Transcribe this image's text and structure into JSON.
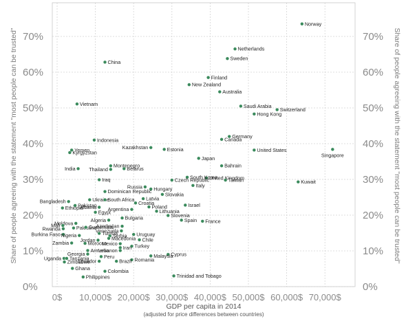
{
  "chart_data": {
    "type": "scatter",
    "title": "",
    "xlabel": "GDP per capita in 2014",
    "xlabel_sub": "(adjusted for price differences between countries)",
    "ylabel": "Share of people agreeing with the statement \"most people can be trusted\"",
    "xlim": [
      0,
      75000
    ],
    "ylim": [
      0,
      75
    ],
    "x_ticks": [
      "0$",
      "10,000$",
      "20,000$",
      "30,000$",
      "40,000$",
      "50,000$",
      "60,000$",
      "70,000$"
    ],
    "y_ticks": [
      "0%",
      "10%",
      "20%",
      "30%",
      "40%",
      "50%",
      "60%",
      "70%"
    ],
    "grid": true,
    "marker_color": "#3a8a5c",
    "points": [
      {
        "name": "Norway",
        "x": 64000,
        "y": 73.5,
        "anchor": "start"
      },
      {
        "name": "Netherlands",
        "x": 46500,
        "y": 66.5,
        "anchor": "start"
      },
      {
        "name": "Sweden",
        "x": 44500,
        "y": 63.8,
        "anchor": "start"
      },
      {
        "name": "China",
        "x": 12500,
        "y": 62.8,
        "anchor": "start"
      },
      {
        "name": "Finland",
        "x": 39500,
        "y": 58.5,
        "anchor": "start"
      },
      {
        "name": "New Zealand",
        "x": 34500,
        "y": 56.5,
        "anchor": "start"
      },
      {
        "name": "Australia",
        "x": 42500,
        "y": 54.5,
        "anchor": "start"
      },
      {
        "name": "Vietnam",
        "x": 5200,
        "y": 51.1,
        "anchor": "start"
      },
      {
        "name": "Saudi Arabia",
        "x": 48000,
        "y": 50.5,
        "anchor": "start"
      },
      {
        "name": "Switzerland",
        "x": 57500,
        "y": 49.5,
        "anchor": "start"
      },
      {
        "name": "Hong Kong",
        "x": 51500,
        "y": 48.3,
        "anchor": "start"
      },
      {
        "name": "Germany",
        "x": 45000,
        "y": 42.0,
        "anchor": "start"
      },
      {
        "name": "Canada",
        "x": 43000,
        "y": 41.2,
        "anchor": "start"
      },
      {
        "name": "Indonesia",
        "x": 9700,
        "y": 41.0,
        "anchor": "start"
      },
      {
        "name": "Kazakhstan",
        "x": 24500,
        "y": 38.9,
        "anchor": "end"
      },
      {
        "name": "Estonia",
        "x": 28000,
        "y": 38.4,
        "anchor": "start"
      },
      {
        "name": "United States",
        "x": 51500,
        "y": 38.2,
        "anchor": "start"
      },
      {
        "name": "Singapore",
        "x": 72000,
        "y": 38.4,
        "anchor": "middle"
      },
      {
        "name": "Yemen",
        "x": 3800,
        "y": 38.2,
        "anchor": "start"
      },
      {
        "name": "Kyrgyzstan",
        "x": 3300,
        "y": 37.5,
        "anchor": "start"
      },
      {
        "name": "Japan",
        "x": 37000,
        "y": 35.9,
        "anchor": "start"
      },
      {
        "name": "Bahrain",
        "x": 43000,
        "y": 33.8,
        "anchor": "start"
      },
      {
        "name": "Montenegro",
        "x": 14000,
        "y": 33.8,
        "anchor": "start"
      },
      {
        "name": "India",
        "x": 5500,
        "y": 33.0,
        "anchor": "end"
      },
      {
        "name": "Thailand",
        "x": 14000,
        "y": 32.8,
        "anchor": "end"
      },
      {
        "name": "Belarus",
        "x": 17500,
        "y": 33.0,
        "anchor": "start"
      },
      {
        "name": "United Kingdom",
        "x": 39000,
        "y": 30.4,
        "anchor": "start"
      },
      {
        "name": "South Korea",
        "x": 34000,
        "y": 30.6,
        "anchor": "start"
      },
      {
        "name": "Czech Republic",
        "x": 30000,
        "y": 29.8,
        "anchor": "start"
      },
      {
        "name": "Taiwan",
        "x": 44000,
        "y": 29.8,
        "anchor": "start"
      },
      {
        "name": "Iraq",
        "x": 11000,
        "y": 29.9,
        "anchor": "start"
      },
      {
        "name": "Kuwait",
        "x": 63000,
        "y": 29.3,
        "anchor": "start"
      },
      {
        "name": "Italy",
        "x": 35500,
        "y": 28.3,
        "anchor": "start"
      },
      {
        "name": "Russia",
        "x": 23000,
        "y": 27.9,
        "anchor": "end"
      },
      {
        "name": "Hungary",
        "x": 24500,
        "y": 27.3,
        "anchor": "start"
      },
      {
        "name": "Dominican Republic",
        "x": 12500,
        "y": 26.6,
        "anchor": "start"
      },
      {
        "name": "Slovakia",
        "x": 27500,
        "y": 25.8,
        "anchor": "start"
      },
      {
        "name": "Latvia",
        "x": 22500,
        "y": 24.6,
        "anchor": "start"
      },
      {
        "name": "Ukraine",
        "x": 8500,
        "y": 24.3,
        "anchor": "start"
      },
      {
        "name": "South Africa",
        "x": 12500,
        "y": 24.3,
        "anchor": "start"
      },
      {
        "name": "Croatia",
        "x": 20500,
        "y": 23.4,
        "anchor": "start"
      },
      {
        "name": "Bangladesh",
        "x": 3000,
        "y": 23.8,
        "anchor": "end"
      },
      {
        "name": "Israel",
        "x": 33500,
        "y": 22.8,
        "anchor": "start"
      },
      {
        "name": "Pakistan",
        "x": 4700,
        "y": 22.7,
        "anchor": "start"
      },
      {
        "name": "Albania",
        "x": 11000,
        "y": 22.2,
        "anchor": "end"
      },
      {
        "name": "Poland",
        "x": 24000,
        "y": 22.3,
        "anchor": "start"
      },
      {
        "name": "Argentina",
        "x": 19500,
        "y": 21.6,
        "anchor": "end"
      },
      {
        "name": "Ethiopia",
        "x": 1400,
        "y": 22.0,
        "anchor": "start"
      },
      {
        "name": "Egypt",
        "x": 10000,
        "y": 20.8,
        "anchor": "start"
      },
      {
        "name": "Lithuania",
        "x": 26000,
        "y": 21.1,
        "anchor": "start"
      },
      {
        "name": "Slovenia",
        "x": 29000,
        "y": 19.9,
        "anchor": "start"
      },
      {
        "name": "Bulgaria",
        "x": 17000,
        "y": 19.2,
        "anchor": "start"
      },
      {
        "name": "Algeria",
        "x": 13500,
        "y": 18.6,
        "anchor": "end"
      },
      {
        "name": "Spain",
        "x": 32500,
        "y": 18.6,
        "anchor": "start"
      },
      {
        "name": "France",
        "x": 38000,
        "y": 18.3,
        "anchor": "start"
      },
      {
        "name": "Moldova",
        "x": 4900,
        "y": 17.7,
        "anchor": "end"
      },
      {
        "name": "Mali",
        "x": 1500,
        "y": 17.1,
        "anchor": "end"
      },
      {
        "name": "Azerbaijan",
        "x": 17000,
        "y": 16.9,
        "anchor": "end"
      },
      {
        "name": "Rwanda",
        "x": 1600,
        "y": 16.2,
        "anchor": "end"
      },
      {
        "name": "Palestine",
        "x": 4300,
        "y": 16.4,
        "anchor": "start"
      },
      {
        "name": "Guatemala",
        "x": 7500,
        "y": 16.6,
        "anchor": "start"
      },
      {
        "name": "Venezuela",
        "x": 16800,
        "y": 15.6,
        "anchor": "end"
      },
      {
        "name": "Burkina Faso",
        "x": 1600,
        "y": 14.6,
        "anchor": "end"
      },
      {
        "name": "Nigeria",
        "x": 5800,
        "y": 14.3,
        "anchor": "end"
      },
      {
        "name": "Tunisia",
        "x": 11000,
        "y": 14.9,
        "anchor": "start"
      },
      {
        "name": "Serbia",
        "x": 13800,
        "y": 14.2,
        "anchor": "start"
      },
      {
        "name": "Uruguay",
        "x": 20000,
        "y": 14.6,
        "anchor": "start"
      },
      {
        "name": "Macedonia",
        "x": 13500,
        "y": 13.5,
        "anchor": "start"
      },
      {
        "name": "Jordan",
        "x": 10700,
        "y": 13.0,
        "anchor": "end"
      },
      {
        "name": "Chile",
        "x": 21500,
        "y": 13.1,
        "anchor": "start"
      },
      {
        "name": "Zambia",
        "x": 3800,
        "y": 12.2,
        "anchor": "end"
      },
      {
        "name": "Morocco",
        "x": 7300,
        "y": 12.1,
        "anchor": "start"
      },
      {
        "name": "Mexico",
        "x": 16500,
        "y": 12.0,
        "anchor": "end"
      },
      {
        "name": "Turkey",
        "x": 19500,
        "y": 11.3,
        "anchor": "start"
      },
      {
        "name": "Iran",
        "x": 16500,
        "y": 10.9,
        "anchor": "start"
      },
      {
        "name": "Armenia",
        "x": 8000,
        "y": 10.1,
        "anchor": "start"
      },
      {
        "name": "Lebanon",
        "x": 16500,
        "y": 10.1,
        "anchor": "end"
      },
      {
        "name": "Georgia",
        "x": 8000,
        "y": 9.1,
        "anchor": "end"
      },
      {
        "name": "Peru",
        "x": 11500,
        "y": 8.4,
        "anchor": "start"
      },
      {
        "name": "Cyprus",
        "x": 29000,
        "y": 9.0,
        "anchor": "start"
      },
      {
        "name": "Malaysia",
        "x": 24500,
        "y": 8.6,
        "anchor": "start"
      },
      {
        "name": "Uganda",
        "x": 1800,
        "y": 7.9,
        "anchor": "end"
      },
      {
        "name": "Tanzania",
        "x": 2500,
        "y": 7.9,
        "anchor": "start"
      },
      {
        "name": "Zimbabwe",
        "x": 1900,
        "y": 6.9,
        "anchor": "start"
      },
      {
        "name": "Romania",
        "x": 19500,
        "y": 7.5,
        "anchor": "start"
      },
      {
        "name": "Ecuador",
        "x": 11000,
        "y": 7.1,
        "anchor": "end"
      },
      {
        "name": "Brazil",
        "x": 15500,
        "y": 7.1,
        "anchor": "start"
      },
      {
        "name": "Ghana",
        "x": 4000,
        "y": 5.1,
        "anchor": "start"
      },
      {
        "name": "Colombia",
        "x": 12500,
        "y": 4.3,
        "anchor": "start"
      },
      {
        "name": "Trinidad and Tobago",
        "x": 30500,
        "y": 3.0,
        "anchor": "start"
      },
      {
        "name": "Philippines",
        "x": 6800,
        "y": 2.7,
        "anchor": "start"
      }
    ]
  }
}
